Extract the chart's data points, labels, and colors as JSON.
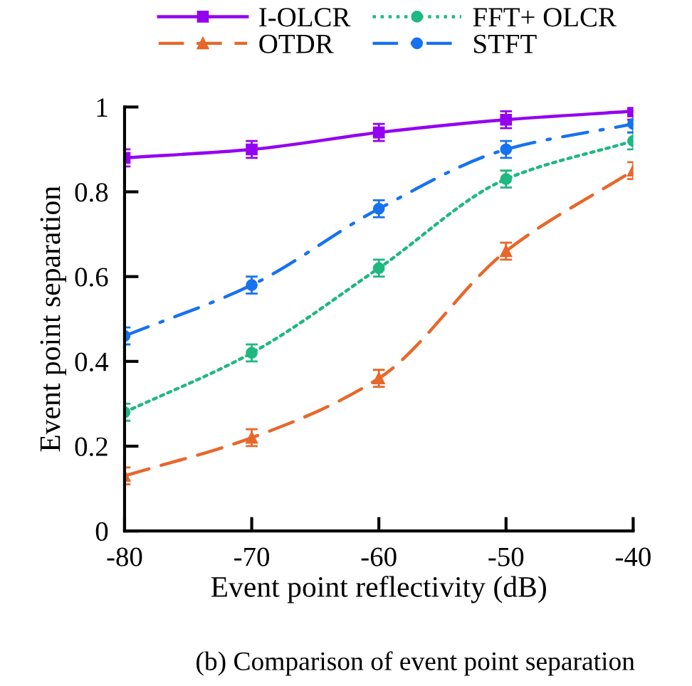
{
  "chart_data": {
    "type": "line",
    "xlabel": "Event point reflectivity (dB)",
    "ylabel": "Event point separation",
    "x": [
      -80,
      -70,
      -60,
      -50,
      -40
    ],
    "xlim": [
      -80,
      -40
    ],
    "xticks": [
      -80,
      -70,
      -60,
      -50,
      -40
    ],
    "ylim": [
      0,
      1
    ],
    "yticks": [
      0,
      0.2,
      0.4,
      0.6,
      0.8,
      1
    ],
    "grid": false,
    "legend": "top",
    "series": [
      {
        "name": "I-OLCR",
        "color": "#9400f0",
        "marker": "square",
        "line_style": "solid",
        "values": [
          0.88,
          0.9,
          0.94,
          0.97,
          0.99
        ],
        "errors": [
          0.02,
          0.02,
          0.02,
          0.02,
          0.02
        ]
      },
      {
        "name": "OTDR",
        "color": "#e8672a",
        "marker": "triangle",
        "line_style": "dashed",
        "values": [
          0.13,
          0.22,
          0.36,
          0.66,
          0.85
        ],
        "errors": [
          0.02,
          0.02,
          0.02,
          0.02,
          0.02
        ]
      },
      {
        "name": "FFT+ OLCR",
        "color": "#1fb880",
        "marker": "circle",
        "line_style": "dotted",
        "values": [
          0.28,
          0.42,
          0.62,
          0.83,
          0.92
        ],
        "errors": [
          0.02,
          0.02,
          0.02,
          0.02,
          0.02
        ]
      },
      {
        "name": "STFT",
        "color": "#1672f0",
        "marker": "circle",
        "line_style": "dashdot",
        "values": [
          0.46,
          0.58,
          0.76,
          0.9,
          0.96
        ],
        "errors": [
          0.02,
          0.02,
          0.02,
          0.02,
          0.02
        ]
      }
    ],
    "annotations": [
      "(b) Comparison of event point separation"
    ]
  }
}
